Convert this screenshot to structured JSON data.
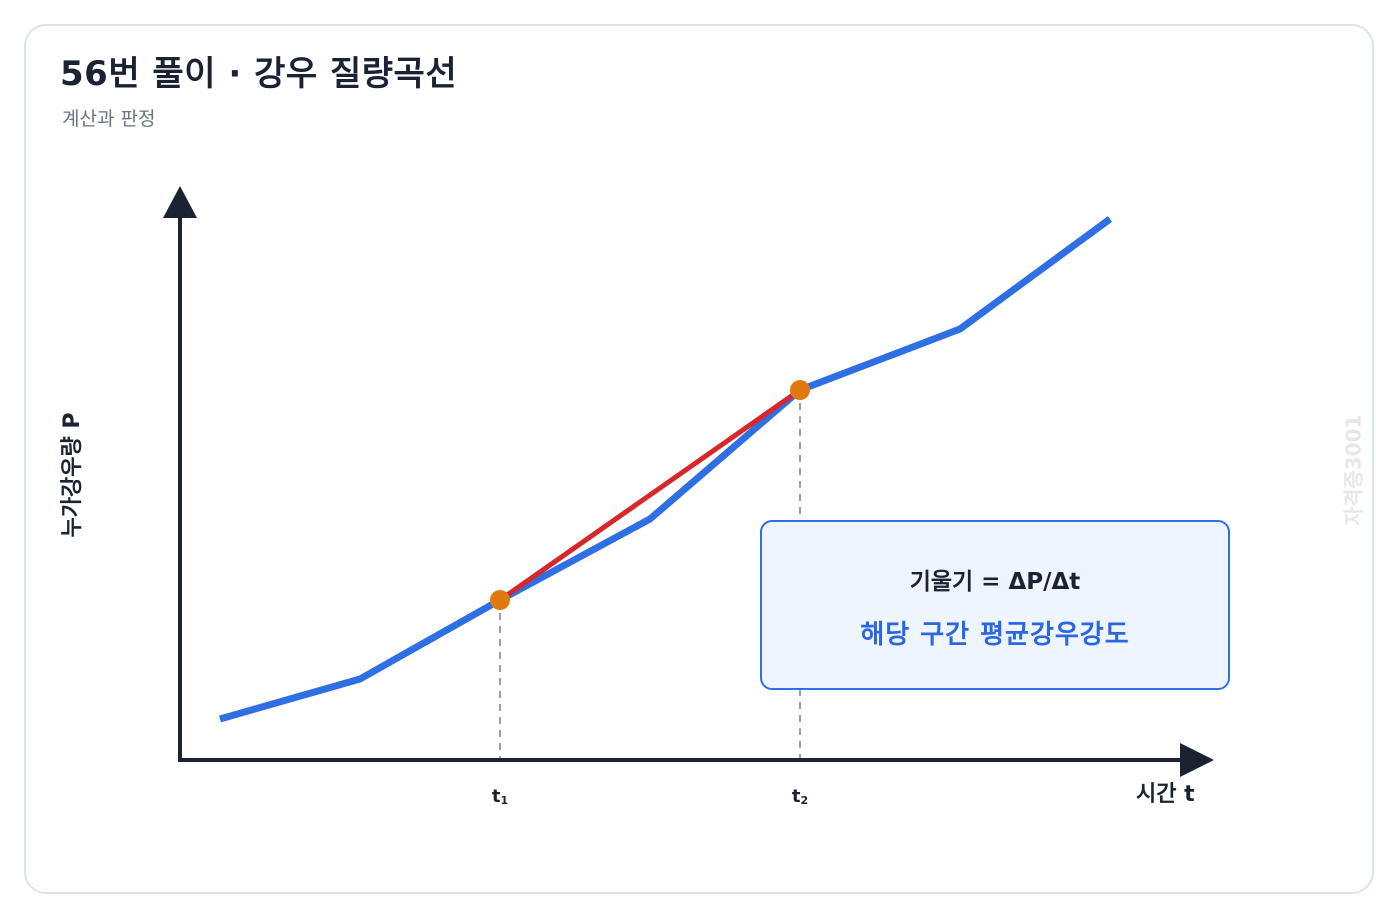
{
  "header": {
    "title": "56번 풀이 · 강우 질량곡선",
    "subtitle": "계산과 판정"
  },
  "watermark": "자격증3001",
  "axes": {
    "y_label": "누가강우량 P",
    "x_label": "시간 t"
  },
  "ticks": {
    "t1": {
      "base": "t",
      "sub": "1"
    },
    "t2": {
      "base": "t",
      "sub": "2"
    }
  },
  "infobox": {
    "formula": "기울기 = ΔP/Δt",
    "meaning": "해당 구간 평균강우강도"
  },
  "colors": {
    "curve": "#2f6fe4",
    "secant": "#d9262b",
    "point": "#e07a10",
    "axis": "#1b2333",
    "guide": "#9aa0a8"
  },
  "icons": {
    "y_axis_arrow": "arrow-up-icon",
    "x_axis_arrow": "arrow-right-icon"
  }
}
